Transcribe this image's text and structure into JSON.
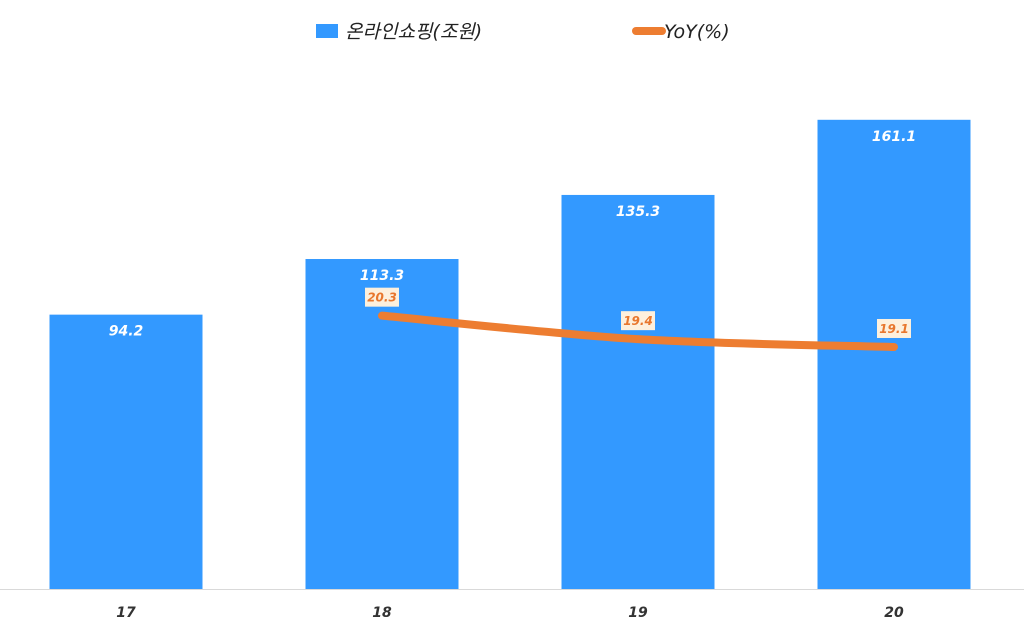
{
  "chart_data": {
    "type": "bar",
    "categories": [
      "17",
      "18",
      "19",
      "20"
    ],
    "series": [
      {
        "name": "온라인쇼핑(조원)",
        "kind": "bar",
        "color": "#3399ff",
        "values": [
          94.2,
          113.3,
          135.3,
          161.1
        ],
        "labels": [
          "94.2",
          "113.3",
          "135.3",
          "161.1"
        ]
      },
      {
        "name": "YoY(%)",
        "kind": "line",
        "color": "#ed7d31",
        "values": [
          null,
          20.3,
          19.4,
          19.1
        ],
        "labels": [
          "",
          "20.3",
          "19.4",
          "19.1"
        ]
      }
    ],
    "y_left_range": [
      0,
      170
    ],
    "y_right_range": [
      0,
      40
    ],
    "legend_position": "top",
    "grid": false,
    "title": "",
    "xlabel": "",
    "ylabel": ""
  }
}
